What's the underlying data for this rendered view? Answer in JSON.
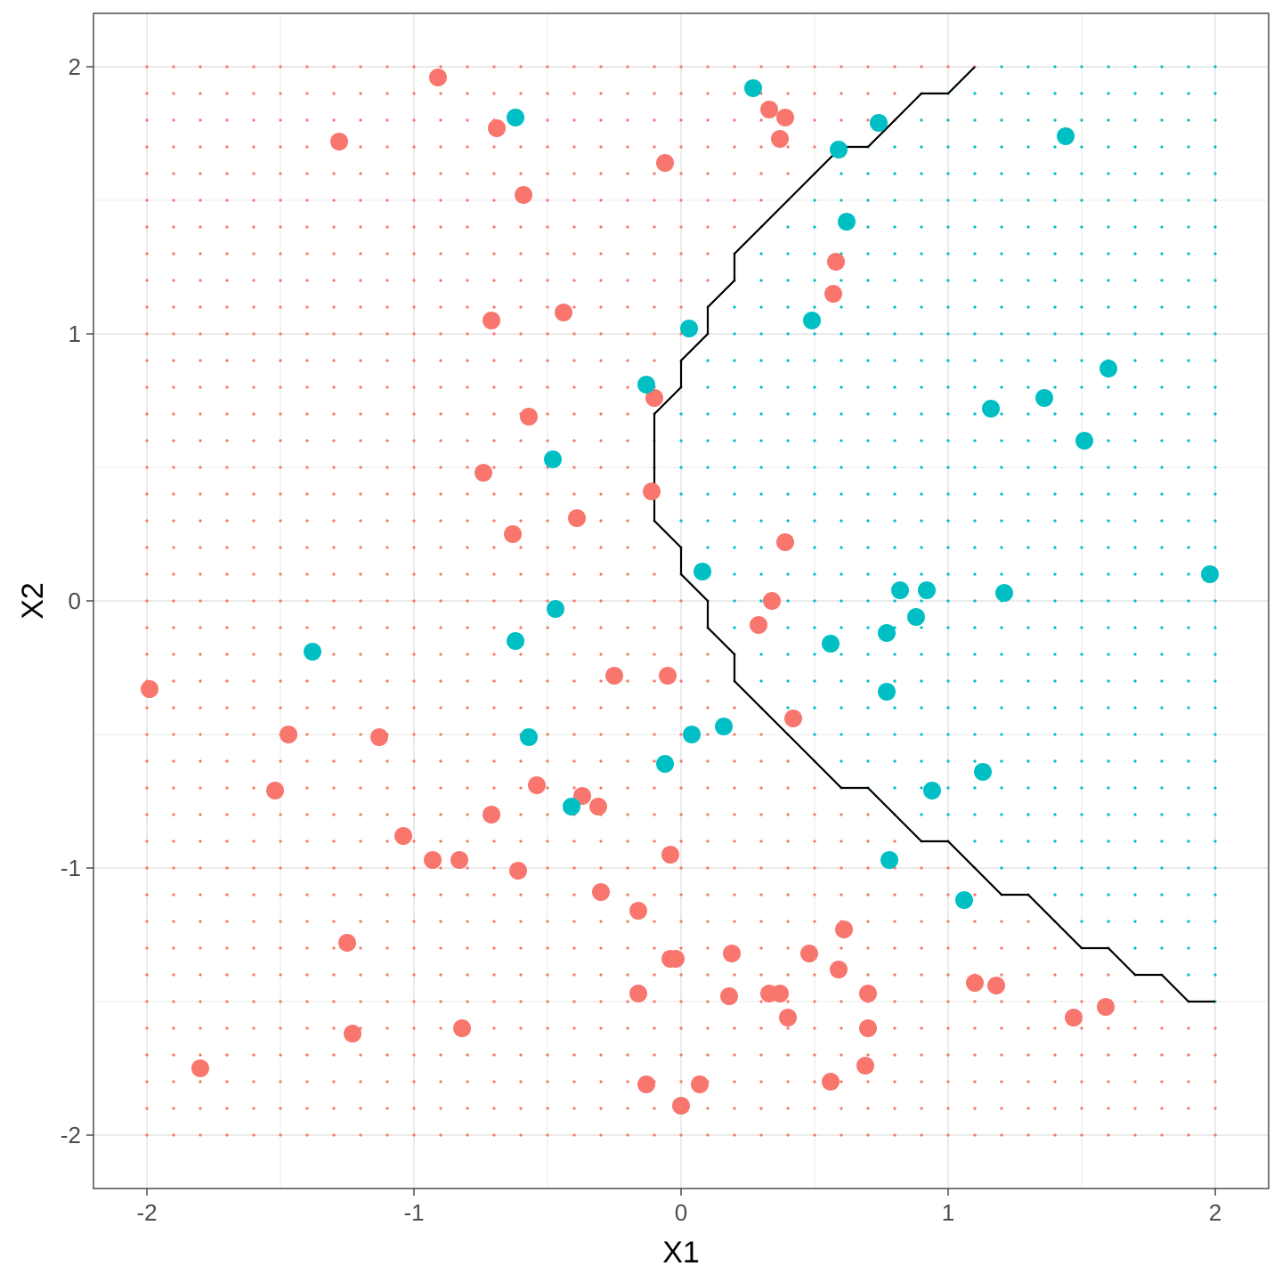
{
  "chart_data": {
    "type": "scatter",
    "title": "",
    "xlabel": "X1",
    "ylabel": "X2",
    "xlim": [
      -2.2,
      2.2
    ],
    "ylim": [
      -2.2,
      2.2
    ],
    "x_ticks": [
      -2,
      -1,
      0,
      1,
      2
    ],
    "y_ticks": [
      -2,
      -1,
      0,
      1,
      2
    ],
    "x_tick_labels": [
      "-2",
      "-1",
      "0",
      "1",
      "2"
    ],
    "y_tick_labels": [
      "-2",
      "-1",
      "0",
      "1",
      "2"
    ],
    "grid": true,
    "legend": "none",
    "colors": {
      "class_a": "#F8766D",
      "class_b": "#00BFC4",
      "boundary": "#000000"
    },
    "prediction_grid": {
      "x_range": [
        -2,
        2
      ],
      "y_range": [
        -2,
        2
      ],
      "step": 0.1
    },
    "decision_boundary": [
      [
        1.1,
        2.0
      ],
      [
        1.0,
        1.9
      ],
      [
        0.9,
        1.9
      ],
      [
        0.7,
        1.7
      ],
      [
        0.6,
        1.7
      ],
      [
        0.2,
        1.3
      ],
      [
        0.2,
        1.2
      ],
      [
        0.1,
        1.1
      ],
      [
        0.1,
        1.0
      ],
      [
        0.0,
        0.9
      ],
      [
        0.0,
        0.8
      ],
      [
        -0.1,
        0.7
      ],
      [
        -0.1,
        0.3
      ],
      [
        0.0,
        0.2
      ],
      [
        0.0,
        0.1
      ],
      [
        0.1,
        0.0
      ],
      [
        0.1,
        -0.1
      ],
      [
        0.2,
        -0.2
      ],
      [
        0.2,
        -0.3
      ],
      [
        0.6,
        -0.7
      ],
      [
        0.7,
        -0.7
      ],
      [
        0.9,
        -0.9
      ],
      [
        1.0,
        -0.9
      ],
      [
        1.2,
        -1.1
      ],
      [
        1.3,
        -1.1
      ],
      [
        1.5,
        -1.3
      ],
      [
        1.6,
        -1.3
      ],
      [
        1.7,
        -1.4
      ],
      [
        1.8,
        -1.4
      ],
      [
        1.9,
        -1.5
      ],
      [
        2.0,
        -1.5
      ]
    ],
    "series": [
      {
        "class": "class_a",
        "points": [
          [
            -0.91,
            1.96
          ],
          [
            -1.28,
            1.72
          ],
          [
            -0.69,
            1.77
          ],
          [
            -0.59,
            1.52
          ],
          [
            -0.06,
            1.64
          ],
          [
            0.33,
            1.84
          ],
          [
            0.39,
            1.81
          ],
          [
            0.37,
            1.73
          ],
          [
            0.58,
            1.27
          ],
          [
            0.57,
            1.15
          ],
          [
            -0.71,
            1.05
          ],
          [
            -0.44,
            1.08
          ],
          [
            -0.1,
            0.76
          ],
          [
            -0.57,
            0.69
          ],
          [
            -0.74,
            0.48
          ],
          [
            -0.11,
            0.41
          ],
          [
            -0.39,
            0.31
          ],
          [
            -0.63,
            0.25
          ],
          [
            0.39,
            0.22
          ],
          [
            0.34,
            0.0
          ],
          [
            0.29,
            -0.09
          ],
          [
            -1.99,
            -0.33
          ],
          [
            -0.25,
            -0.28
          ],
          [
            -0.05,
            -0.28
          ],
          [
            0.42,
            -0.44
          ],
          [
            -1.47,
            -0.5
          ],
          [
            -1.13,
            -0.51
          ],
          [
            -1.52,
            -0.71
          ],
          [
            -0.54,
            -0.69
          ],
          [
            -0.37,
            -0.73
          ],
          [
            -0.31,
            -0.77
          ],
          [
            -0.71,
            -0.8
          ],
          [
            -1.04,
            -0.88
          ],
          [
            -0.93,
            -0.97
          ],
          [
            -0.83,
            -0.97
          ],
          [
            -0.61,
            -1.01
          ],
          [
            -0.04,
            -0.95
          ],
          [
            -0.3,
            -1.09
          ],
          [
            -0.16,
            -1.16
          ],
          [
            0.61,
            -1.23
          ],
          [
            -1.25,
            -1.28
          ],
          [
            0.19,
            -1.32
          ],
          [
            0.48,
            -1.32
          ],
          [
            -0.04,
            -1.34
          ],
          [
            -0.02,
            -1.34
          ],
          [
            0.59,
            -1.38
          ],
          [
            1.1,
            -1.43
          ],
          [
            1.18,
            -1.44
          ],
          [
            -0.16,
            -1.47
          ],
          [
            0.18,
            -1.48
          ],
          [
            0.33,
            -1.47
          ],
          [
            0.37,
            -1.47
          ],
          [
            0.7,
            -1.47
          ],
          [
            0.4,
            -1.56
          ],
          [
            1.47,
            -1.56
          ],
          [
            1.59,
            -1.52
          ],
          [
            -1.23,
            -1.62
          ],
          [
            -0.82,
            -1.6
          ],
          [
            0.7,
            -1.6
          ],
          [
            -1.8,
            -1.75
          ],
          [
            0.69,
            -1.74
          ],
          [
            -0.13,
            -1.81
          ],
          [
            0.07,
            -1.81
          ],
          [
            0.56,
            -1.8
          ],
          [
            0.0,
            -1.89
          ]
        ]
      },
      {
        "class": "class_b",
        "points": [
          [
            0.27,
            1.92
          ],
          [
            -0.62,
            1.81
          ],
          [
            0.74,
            1.79
          ],
          [
            1.44,
            1.74
          ],
          [
            0.59,
            1.69
          ],
          [
            0.62,
            1.42
          ],
          [
            0.49,
            1.05
          ],
          [
            0.03,
            1.02
          ],
          [
            1.6,
            0.87
          ],
          [
            -0.13,
            0.81
          ],
          [
            1.36,
            0.76
          ],
          [
            1.16,
            0.72
          ],
          [
            1.51,
            0.6
          ],
          [
            -0.48,
            0.53
          ],
          [
            0.08,
            0.11
          ],
          [
            1.98,
            0.1
          ],
          [
            0.82,
            0.04
          ],
          [
            0.92,
            0.04
          ],
          [
            1.21,
            0.03
          ],
          [
            -0.47,
            -0.03
          ],
          [
            0.88,
            -0.06
          ],
          [
            0.77,
            -0.12
          ],
          [
            0.56,
            -0.16
          ],
          [
            -0.62,
            -0.15
          ],
          [
            -1.38,
            -0.19
          ],
          [
            0.77,
            -0.34
          ],
          [
            0.16,
            -0.47
          ],
          [
            0.04,
            -0.5
          ],
          [
            -0.57,
            -0.51
          ],
          [
            -0.06,
            -0.61
          ],
          [
            1.13,
            -0.64
          ],
          [
            0.94,
            -0.71
          ],
          [
            -0.41,
            -0.77
          ],
          [
            0.78,
            -0.97
          ],
          [
            1.06,
            -1.12
          ]
        ]
      }
    ]
  }
}
